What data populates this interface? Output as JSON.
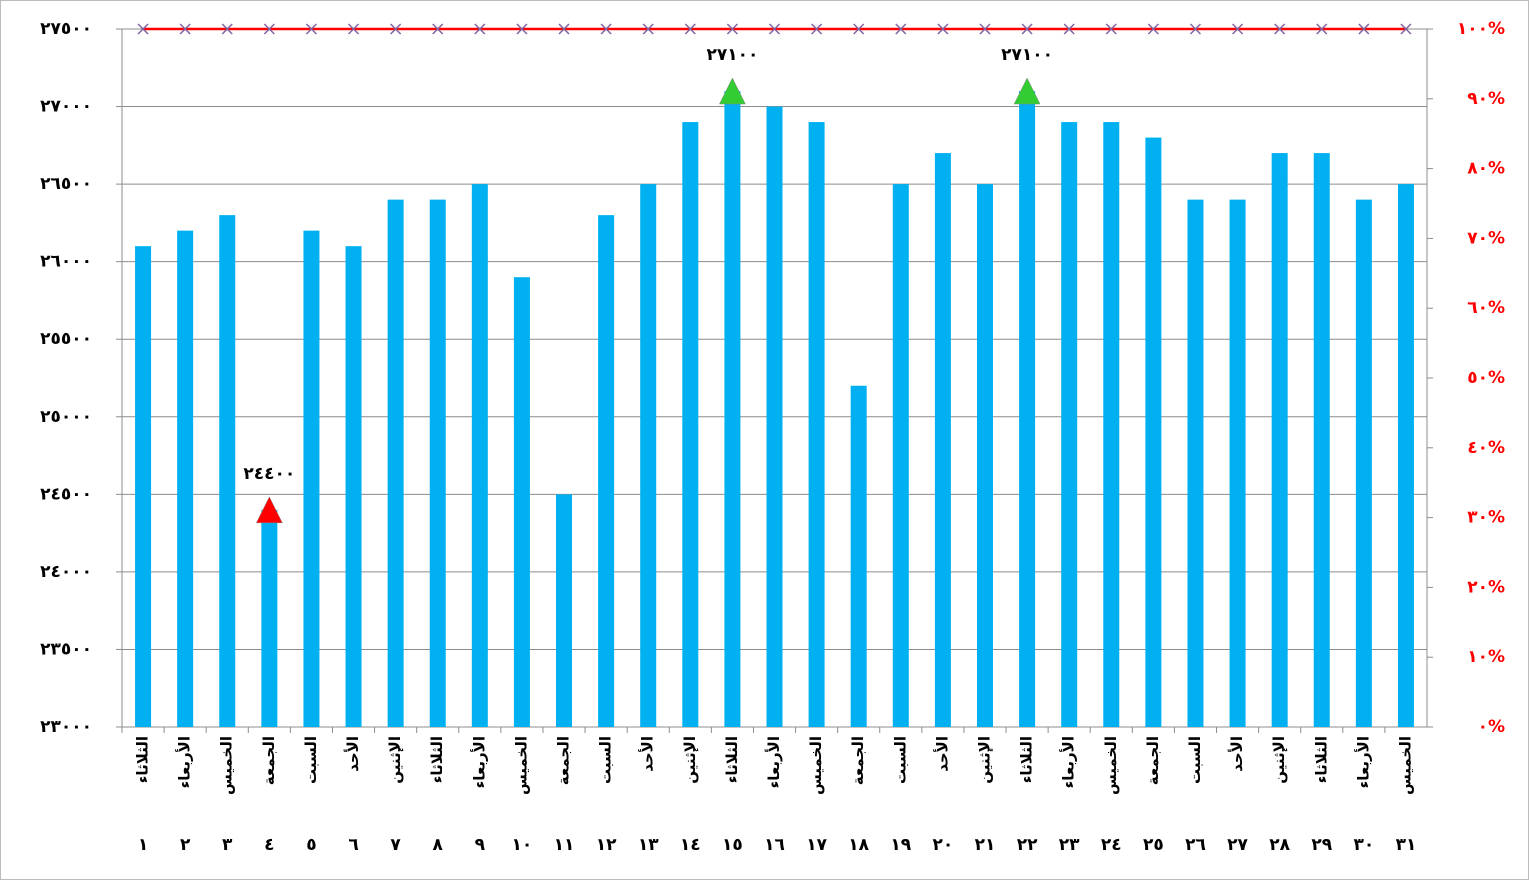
{
  "chart_data": {
    "type": "bar",
    "categories": [
      "الثلاثاء",
      "الأربعاء",
      "الخميس",
      "الجمعة",
      "السبت",
      "الأحد",
      "الإثنين",
      "الثلاثاء",
      "الأربعاء",
      "الخميس",
      "الجمعة",
      "السبت",
      "الأحد",
      "الإثنين",
      "الثلاثاء",
      "الأربعاء",
      "الخميس",
      "الجمعة",
      "السبت",
      "الأحد",
      "الإثنين",
      "الثلاثاء",
      "الأربعاء",
      "الخميس",
      "الجمعة",
      "السبت",
      "الأحد",
      "الإثنين",
      "الثلاثاء",
      "الأربعاء",
      "الخميس"
    ],
    "days": [
      "١",
      "٢",
      "٣",
      "٤",
      "٥",
      "٦",
      "٧",
      "٨",
      "٩",
      "١٠",
      "١١",
      "١٢",
      "١٣",
      "١٤",
      "١٥",
      "١٦",
      "١٧",
      "١٨",
      "١٩",
      "٢٠",
      "٢١",
      "٢٢",
      "٢٣",
      "٢٤",
      "٢٥",
      "٢٦",
      "٢٧",
      "٢٨",
      "٢٩",
      "٣٠",
      "٣١"
    ],
    "ylim": [
      23000,
      27500
    ],
    "yticks": [
      {
        "value": 23000,
        "label": "٢٣٠٠٠"
      },
      {
        "value": 23500,
        "label": "٢٣٥٠٠"
      },
      {
        "value": 24000,
        "label": "٢٤٠٠٠"
      },
      {
        "value": 24500,
        "label": "٢٤٥٠٠"
      },
      {
        "value": 25000,
        "label": "٢٥٠٠٠"
      },
      {
        "value": 25500,
        "label": "٢٥٥٠٠"
      },
      {
        "value": 26000,
        "label": "٢٦٠٠٠"
      },
      {
        "value": 26500,
        "label": "٢٦٥٠٠"
      },
      {
        "value": 27000,
        "label": "٢٧٠٠٠"
      },
      {
        "value": 27500,
        "label": "٢٧٥٠٠"
      }
    ],
    "y2lim": [
      0,
      100
    ],
    "y2ticks": [
      {
        "value": 0,
        "label": "٠%"
      },
      {
        "value": 10,
        "label": "١٠%"
      },
      {
        "value": 20,
        "label": "٢٠%"
      },
      {
        "value": 30,
        "label": "٣٠%"
      },
      {
        "value": 40,
        "label": "٤٠%"
      },
      {
        "value": 50,
        "label": "٥٠%"
      },
      {
        "value": 60,
        "label": "٦٠%"
      },
      {
        "value": 70,
        "label": "٧٠%"
      },
      {
        "value": 80,
        "label": "٨٠%"
      },
      {
        "value": 90,
        "label": "٩٠%"
      },
      {
        "value": 100,
        "label": "١٠٠%"
      }
    ],
    "y2color": "#ff0000",
    "grid": true,
    "series": [
      {
        "type": "bar",
        "color": "#00b0f0",
        "values": [
          26100,
          26200,
          26300,
          24400,
          26200,
          26100,
          26400,
          26400,
          26500,
          25900,
          24500,
          26300,
          26500,
          26900,
          27100,
          27000,
          26900,
          25200,
          26500,
          26700,
          26500,
          27100,
          26900,
          26900,
          26800,
          26400,
          26400,
          26700,
          26700,
          26400,
          26500
        ]
      },
      {
        "type": "triangle",
        "color": "#ff0000",
        "values": [
          null,
          null,
          null,
          24400,
          null,
          null,
          null,
          null,
          null,
          null,
          null,
          null,
          null,
          null,
          null,
          null,
          null,
          null,
          null,
          null,
          null,
          null,
          null,
          null,
          null,
          null,
          null,
          null,
          null,
          null,
          null
        ],
        "value_labels": [
          null,
          null,
          null,
          "٢٤٤٠٠",
          null,
          null,
          null,
          null,
          null,
          null,
          null,
          null,
          null,
          null,
          null,
          null,
          null,
          null,
          null,
          null,
          null,
          null,
          null,
          null,
          null,
          null,
          null,
          null,
          null,
          null,
          null
        ]
      },
      {
        "type": "triangle",
        "color": "#33cc33",
        "values": [
          null,
          null,
          null,
          null,
          null,
          null,
          null,
          null,
          null,
          null,
          null,
          null,
          null,
          null,
          27100,
          null,
          null,
          null,
          null,
          null,
          null,
          27100,
          null,
          null,
          null,
          null,
          null,
          null,
          null,
          null,
          null
        ],
        "value_labels": [
          null,
          null,
          null,
          null,
          null,
          null,
          null,
          null,
          null,
          null,
          null,
          null,
          null,
          null,
          "٢٧١٠٠",
          null,
          null,
          null,
          null,
          null,
          null,
          "٢٧١٠٠",
          null,
          null,
          null,
          null,
          null,
          null,
          null,
          null,
          null
        ]
      },
      {
        "type": "line",
        "axis": "y2",
        "color": "#ff0000",
        "marker_color": "#8064a2",
        "values": [
          100,
          100,
          100,
          100,
          100,
          100,
          100,
          100,
          100,
          100,
          100,
          100,
          100,
          100,
          100,
          100,
          100,
          100,
          100,
          100,
          100,
          100,
          100,
          100,
          100,
          100,
          100,
          100,
          100,
          100,
          100
        ]
      }
    ]
  }
}
